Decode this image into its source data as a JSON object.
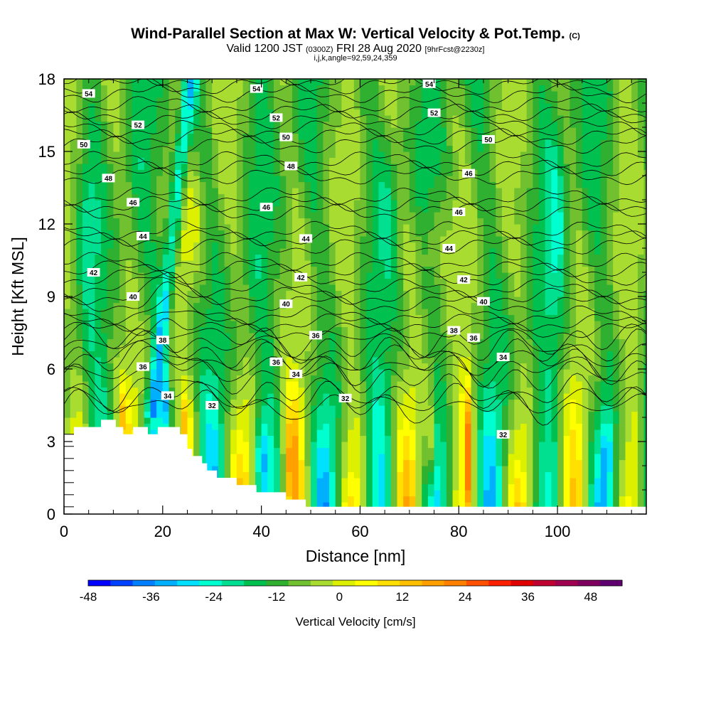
{
  "header": {
    "title": "Wind-Parallel Section at Max W: Vertical Velocity & Pot.Temp.",
    "title_mark": "(C)",
    "valid_prefix": "Valid 1200 JST",
    "valid_utc": "(0300Z)",
    "valid_date": "FRI 28 Aug 2020",
    "forecast": "[9hrFcst@2230z]",
    "indices": "i,j,k,angle=92,59,24,359"
  },
  "chart_data": {
    "type": "heatmap",
    "xlabel": "Distance [nm]",
    "ylabel": "Height [Kft MSL]",
    "xlim": [
      0,
      118
    ],
    "ylim": [
      0,
      18
    ],
    "x_ticks": [
      "0",
      "20",
      "40",
      "60",
      "80",
      "100"
    ],
    "x_tick_values": [
      0,
      20,
      40,
      60,
      80,
      100
    ],
    "y_ticks": [
      "0",
      "3",
      "6",
      "9",
      "12",
      "15",
      "18"
    ],
    "y_tick_values": [
      0,
      3,
      6,
      9,
      12,
      15,
      18
    ],
    "colorbar": {
      "title": "Vertical Velocity [cm/s]",
      "min": -48,
      "max": 54,
      "step": 6,
      "labels": [
        "-48",
        "-36",
        "-24",
        "-12",
        "0",
        "12",
        "24",
        "36",
        "48"
      ],
      "label_values": [
        -48,
        -36,
        -24,
        -12,
        0,
        12,
        24,
        36,
        48
      ],
      "colors": [
        "#0000ff",
        "#0040ff",
        "#0080ff",
        "#00b0ff",
        "#00e0ff",
        "#00ffd0",
        "#00e090",
        "#00c050",
        "#30b030",
        "#70c030",
        "#a8dc30",
        "#dcf000",
        "#ffff00",
        "#ffe000",
        "#ffc000",
        "#ffa000",
        "#ff8000",
        "#ff5000",
        "#ff2000",
        "#e00000",
        "#c00030",
        "#a00050",
        "#800060",
        "#600070"
      ]
    },
    "isentropes": {
      "levels": [
        32,
        34,
        36,
        38,
        40,
        42,
        44,
        46,
        48,
        50,
        52,
        54
      ],
      "labels": [
        {
          "text": "54",
          "x": 5,
          "y": 17.4
        },
        {
          "text": "54",
          "x": 39,
          "y": 17.6
        },
        {
          "text": "54",
          "x": 74,
          "y": 17.8
        },
        {
          "text": "52",
          "x": 15,
          "y": 16.1
        },
        {
          "text": "52",
          "x": 43,
          "y": 16.4
        },
        {
          "text": "52",
          "x": 75,
          "y": 16.6
        },
        {
          "text": "50",
          "x": 4,
          "y": 15.3
        },
        {
          "text": "50",
          "x": 45,
          "y": 15.6
        },
        {
          "text": "50",
          "x": 86,
          "y": 15.5
        },
        {
          "text": "48",
          "x": 9,
          "y": 13.9
        },
        {
          "text": "48",
          "x": 46,
          "y": 14.4
        },
        {
          "text": "46",
          "x": 82,
          "y": 14.1
        },
        {
          "text": "46",
          "x": 14,
          "y": 12.9
        },
        {
          "text": "46",
          "x": 41,
          "y": 12.7
        },
        {
          "text": "46",
          "x": 80,
          "y": 12.5
        },
        {
          "text": "44",
          "x": 16,
          "y": 11.5
        },
        {
          "text": "44",
          "x": 49,
          "y": 11.4
        },
        {
          "text": "44",
          "x": 78,
          "y": 11.0
        },
        {
          "text": "42",
          "x": 6,
          "y": 10.0
        },
        {
          "text": "42",
          "x": 48,
          "y": 9.8
        },
        {
          "text": "42",
          "x": 81,
          "y": 9.7
        },
        {
          "text": "40",
          "x": 14,
          "y": 9.0
        },
        {
          "text": "40",
          "x": 45,
          "y": 8.7
        },
        {
          "text": "40",
          "x": 85,
          "y": 8.8
        },
        {
          "text": "38",
          "x": 20,
          "y": 7.2
        },
        {
          "text": "38",
          "x": 79,
          "y": 7.6
        },
        {
          "text": "36",
          "x": 51,
          "y": 7.4
        },
        {
          "text": "36",
          "x": 83,
          "y": 7.3
        },
        {
          "text": "36",
          "x": 16,
          "y": 6.1
        },
        {
          "text": "36",
          "x": 43,
          "y": 6.3
        },
        {
          "text": "34",
          "x": 47,
          "y": 5.8
        },
        {
          "text": "34",
          "x": 89,
          "y": 6.5
        },
        {
          "text": "34",
          "x": 21,
          "y": 4.9
        },
        {
          "text": "32",
          "x": 30,
          "y": 4.5
        },
        {
          "text": "32",
          "x": 57,
          "y": 4.8
        },
        {
          "text": "32",
          "x": 89,
          "y": 3.3
        }
      ]
    },
    "terrain_outline_note_free": true,
    "terrain": [
      [
        0,
        3.3
      ],
      [
        2,
        3.3
      ],
      [
        2,
        3.6
      ],
      [
        7.5,
        3.6
      ],
      [
        7.5,
        3.9
      ],
      [
        10.5,
        3.9
      ],
      [
        10.5,
        3.6
      ],
      [
        12,
        3.6
      ],
      [
        12,
        3.3
      ],
      [
        14,
        3.3
      ],
      [
        14,
        3.6
      ],
      [
        17,
        3.6
      ],
      [
        17,
        3.3
      ],
      [
        19,
        3.3
      ],
      [
        19,
        3.6
      ],
      [
        23.5,
        3.6
      ],
      [
        23.5,
        3.3
      ],
      [
        25,
        3.3
      ],
      [
        25,
        2.7
      ],
      [
        26,
        2.7
      ],
      [
        26,
        2.4
      ],
      [
        28,
        2.4
      ],
      [
        28,
        2.1
      ],
      [
        29,
        2.1
      ],
      [
        29,
        1.8
      ],
      [
        31,
        1.8
      ],
      [
        31,
        1.5
      ],
      [
        35,
        1.5
      ],
      [
        35,
        1.2
      ],
      [
        39,
        1.2
      ],
      [
        39,
        0.9
      ],
      [
        45,
        0.9
      ],
      [
        45,
        0.6
      ],
      [
        49,
        0.6
      ],
      [
        49,
        0.3
      ],
      [
        118,
        0.3
      ]
    ]
  }
}
